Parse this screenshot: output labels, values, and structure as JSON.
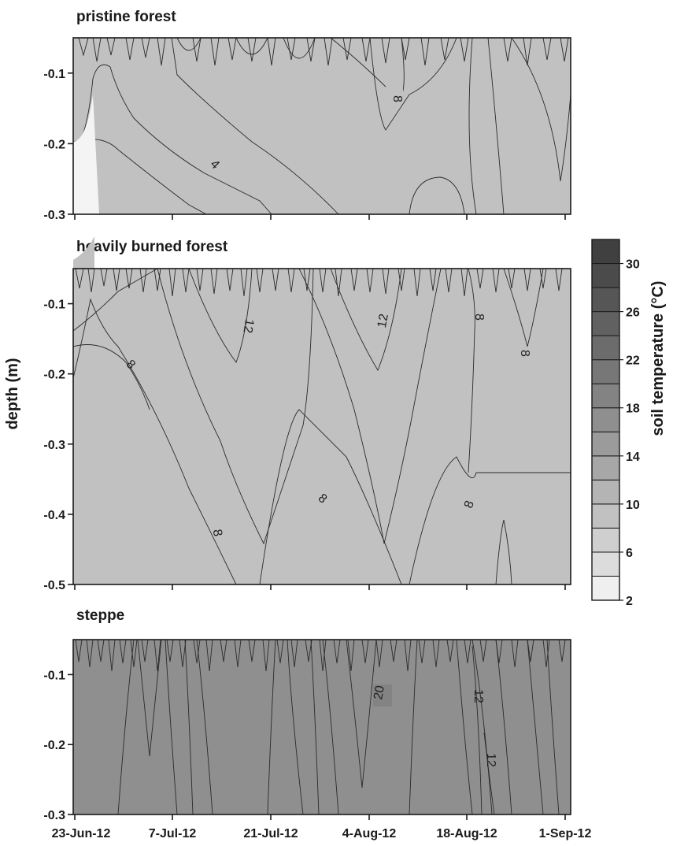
{
  "chart_data": {
    "type": "heatmap",
    "description_units": {
      "x": "date",
      "y": "depth (m)",
      "z": "soil temperature (°C)"
    },
    "x_ticks": [
      "23-Jun-12",
      "7-Jul-12",
      "21-Jul-12",
      "4-Aug-12",
      "18-Aug-12",
      "1-Sep-12"
    ],
    "ylabel": "depth (m)",
    "colorbar": {
      "label": "soil temperature (°C)",
      "levels": [
        2,
        4,
        6,
        8,
        10,
        12,
        14,
        16,
        18,
        20,
        22,
        24,
        26,
        28,
        30,
        32
      ],
      "tick_labels": [
        "2",
        "6",
        "10",
        "14",
        "18",
        "22",
        "26",
        "30"
      ],
      "colors": [
        "#efefef",
        "#dcdcdc",
        "#cfcfcf",
        "#c1c1c1",
        "#b4b4b4",
        "#a7a7a7",
        "#9b9b9b",
        "#8f8f8f",
        "#838383",
        "#777777",
        "#6c6c6c",
        "#616161",
        "#565656",
        "#4b4b4b",
        "#404040"
      ]
    },
    "panels": [
      {
        "title": "pristine forest",
        "y_ticks": [
          "-0.1",
          "-0.2",
          "-0.3"
        ],
        "y_tick_values": [
          -0.1,
          -0.2,
          -0.3
        ],
        "ylim": [
          -0.05,
          -0.3
        ],
        "contour_labels": [
          "4",
          "8"
        ]
      },
      {
        "title": "heavily burned forest",
        "y_ticks": [
          "-0.1",
          "-0.2",
          "-0.3",
          "-0.4",
          "-0.5"
        ],
        "y_tick_values": [
          -0.1,
          -0.2,
          -0.3,
          -0.4,
          -0.5
        ],
        "ylim": [
          -0.05,
          -0.5
        ],
        "contour_labels": [
          "12",
          "12",
          "8",
          "8",
          "8",
          "8",
          "8",
          "8"
        ]
      },
      {
        "title": "steppe",
        "y_ticks": [
          "-0.1",
          "-0.2",
          "-0.3"
        ],
        "y_tick_values": [
          -0.1,
          -0.2,
          -0.3
        ],
        "ylim": [
          -0.05,
          -0.3
        ],
        "contour_labels": [
          "20",
          "12",
          "12"
        ]
      }
    ]
  }
}
